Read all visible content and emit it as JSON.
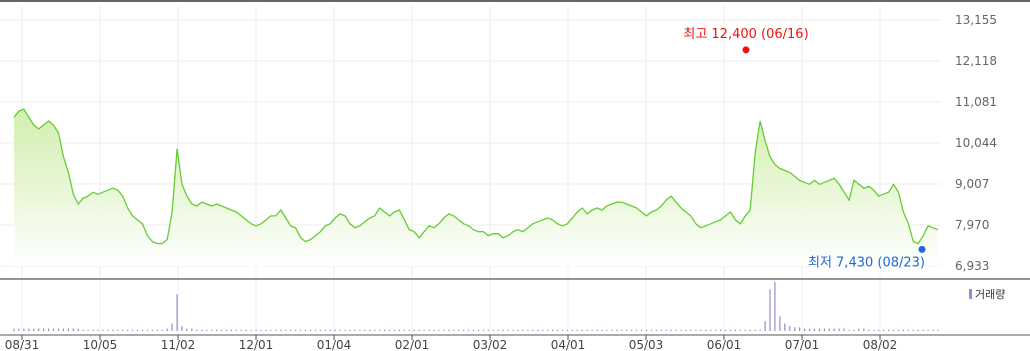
{
  "chart_data": {
    "type": "area",
    "title": "",
    "xlabel": "",
    "ylabel": "",
    "ylim": [
      6933,
      13155
    ],
    "y_ticks": [
      "13,155",
      "12,118",
      "11,081",
      "10,044",
      "9,007",
      "7,970",
      "6,933"
    ],
    "x_ticks": [
      "08/31",
      "10/05",
      "11/02",
      "12/01",
      "01/04",
      "02/01",
      "03/02",
      "04/01",
      "05/03",
      "06/01",
      "07/01",
      "08/02"
    ],
    "grid": true,
    "colors": {
      "line": "#66cc33",
      "fill_top": "#cfeeaa",
      "high": "#ee1111",
      "low": "#2266dd",
      "volume": "#9988cc"
    },
    "series": [
      {
        "values": [
          10700,
          10850,
          10900,
          10700,
          10500,
          10400,
          10500,
          10600,
          10500,
          10300,
          9700,
          9300,
          8750,
          8500,
          8650,
          8700,
          8800,
          8750,
          8800,
          8850,
          8900,
          8850,
          8700,
          8400,
          8200,
          8100,
          8000,
          7700,
          7550,
          7500,
          7500,
          7600,
          8300,
          9900,
          9000,
          8700,
          8500,
          8450,
          8550,
          8500,
          8450,
          8500,
          8450,
          8400,
          8350,
          8300,
          8200,
          8100,
          8000,
          7950,
          8000,
          8100,
          8200,
          8200,
          8350,
          8150,
          7950,
          7900,
          7650,
          7550,
          7600,
          7700,
          7800,
          7950,
          8000,
          8150,
          8250,
          8200,
          8000,
          7900,
          7950,
          8050,
          8150,
          8200,
          8400,
          8300,
          8200,
          8300,
          8350,
          8100,
          7850,
          7800,
          7650,
          7800,
          7950,
          7900,
          8000,
          8150,
          8250,
          8200,
          8100,
          8000,
          7950,
          7850,
          7800,
          7800,
          7700,
          7750,
          7750,
          7650,
          7700,
          7800,
          7850,
          7800,
          7900,
          8000,
          8050,
          8100,
          8150,
          8100,
          8000,
          7950,
          8000,
          8150,
          8300,
          8400,
          8250,
          8350,
          8400,
          8350,
          8450,
          8500,
          8550,
          8550,
          8500,
          8450,
          8400,
          8300,
          8200,
          8300,
          8350,
          8450,
          8600,
          8700,
          8550,
          8400,
          8300,
          8200,
          8000,
          7900,
          7950,
          8000,
          8050,
          8100,
          8200,
          8300,
          8100,
          8000,
          8200,
          8350,
          9800,
          10600,
          10100,
          9700,
          9500,
          9400,
          9350,
          9300,
          9200,
          9100,
          9050,
          9000,
          9100,
          9000,
          9050,
          9100,
          9150,
          9000,
          8800,
          8600,
          9100,
          9000,
          8900,
          8950,
          8850,
          8700,
          8750,
          8800,
          9000,
          8800,
          8300,
          8000,
          7550,
          7500,
          7700,
          7950,
          7900,
          7850
        ],
        "high_label": "최고 12,400 (06/16)",
        "low_label": "최저 7,430 (08/23)"
      }
    ],
    "volume": {
      "legend": "거래량",
      "values": [
        2,
        2,
        2,
        2,
        2,
        2,
        2,
        2,
        2,
        2,
        2,
        2,
        2,
        2,
        1,
        1,
        1,
        1,
        1,
        1,
        1,
        1,
        1,
        1,
        1,
        1,
        1,
        1,
        1,
        1,
        1,
        2,
        6,
        30,
        4,
        2,
        2,
        1,
        1,
        1,
        1,
        1,
        1,
        1,
        1,
        1,
        1,
        1,
        1,
        1,
        1,
        1,
        1,
        1,
        1,
        1,
        1,
        1,
        1,
        1,
        1,
        1,
        1,
        1,
        1,
        1,
        1,
        1,
        1,
        1,
        1,
        1,
        1,
        1,
        1,
        1,
        1,
        1,
        1,
        1,
        1,
        1,
        1,
        1,
        1,
        1,
        1,
        1,
        1,
        1,
        1,
        1,
        1,
        1,
        1,
        1,
        1,
        1,
        1,
        1,
        1,
        1,
        1,
        1,
        1,
        1,
        1,
        1,
        1,
        1,
        1,
        1,
        1,
        1,
        1,
        1,
        1,
        1,
        1,
        1,
        1,
        1,
        1,
        1,
        1,
        1,
        1,
        1,
        1,
        1,
        1,
        1,
        1,
        1,
        1,
        1,
        1,
        1,
        1,
        1,
        1,
        1,
        1,
        1,
        1,
        1,
        1,
        1,
        1,
        1,
        1,
        1,
        8,
        34,
        40,
        12,
        6,
        4,
        3,
        3,
        2,
        2,
        2,
        2,
        2,
        2,
        2,
        2,
        2,
        1,
        1,
        2,
        2,
        1,
        1,
        1,
        1,
        1,
        1,
        1,
        1,
        1,
        1,
        1,
        1,
        1,
        1,
        1
      ]
    }
  }
}
